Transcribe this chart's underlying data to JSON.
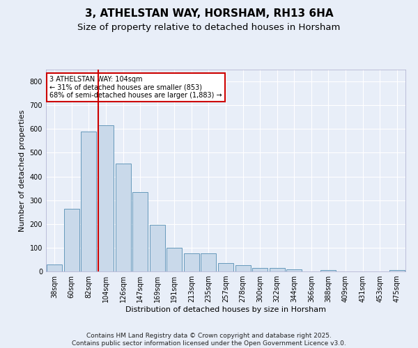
{
  "title1": "3, ATHELSTAN WAY, HORSHAM, RH13 6HA",
  "title2": "Size of property relative to detached houses in Horsham",
  "xlabel": "Distribution of detached houses by size in Horsham",
  "ylabel": "Number of detached properties",
  "categories": [
    "38sqm",
    "60sqm",
    "82sqm",
    "104sqm",
    "126sqm",
    "147sqm",
    "169sqm",
    "191sqm",
    "213sqm",
    "235sqm",
    "257sqm",
    "278sqm",
    "300sqm",
    "322sqm",
    "344sqm",
    "366sqm",
    "388sqm",
    "409sqm",
    "431sqm",
    "453sqm",
    "475sqm"
  ],
  "values": [
    30,
    265,
    590,
    615,
    455,
    335,
    195,
    100,
    75,
    75,
    35,
    25,
    15,
    15,
    10,
    0,
    5,
    0,
    0,
    0,
    5
  ],
  "bar_color": "#c9d9ea",
  "bar_edge_color": "#6699bb",
  "vline_x_index": 3,
  "vline_color": "#cc0000",
  "annotation_text": "3 ATHELSTAN WAY: 104sqm\n← 31% of detached houses are smaller (853)\n68% of semi-detached houses are larger (1,883) →",
  "annotation_box_color": "#ffffff",
  "annotation_box_edge": "#cc0000",
  "ylim": [
    0,
    850
  ],
  "yticks": [
    0,
    100,
    200,
    300,
    400,
    500,
    600,
    700,
    800
  ],
  "footer": "Contains HM Land Registry data © Crown copyright and database right 2025.\nContains public sector information licensed under the Open Government Licence v3.0.",
  "bg_color": "#e8eef8",
  "plot_bg_color": "#e8eef8",
  "grid_color": "#ffffff",
  "title1_fontsize": 11,
  "title2_fontsize": 9.5,
  "xlabel_fontsize": 8,
  "ylabel_fontsize": 8,
  "tick_fontsize": 7,
  "footer_fontsize": 6.5,
  "ann_fontsize": 7
}
